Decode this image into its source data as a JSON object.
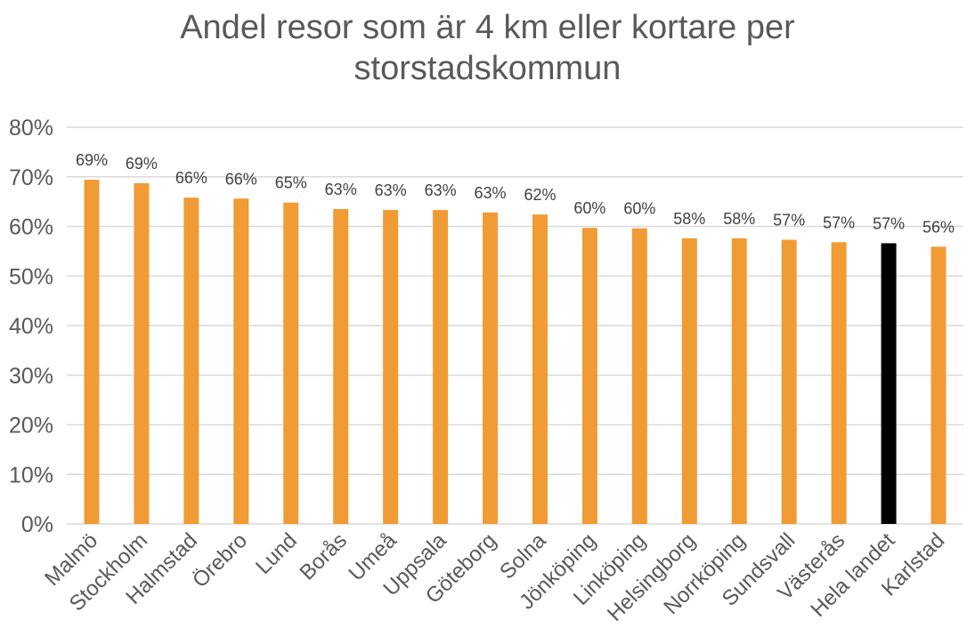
{
  "chart_data": {
    "type": "bar",
    "title": "Andel resor som är 4 km eller kortare per storstadskommun",
    "title_lines": [
      "Andel resor som är 4 km eller kortare per",
      "storstadskommun"
    ],
    "xlabel": "",
    "ylabel": "",
    "ylim": [
      0,
      0.8
    ],
    "yticks": [
      0,
      0.1,
      0.2,
      0.3,
      0.4,
      0.5,
      0.6,
      0.7,
      0.8
    ],
    "ytick_labels": [
      "0%",
      "10%",
      "20%",
      "30%",
      "40%",
      "50%",
      "60%",
      "70%",
      "80%"
    ],
    "grid": true,
    "legend": "none",
    "categories": [
      "Malmö",
      "Stockholm",
      "Halmstad",
      "Örebro",
      "Lund",
      "Borås",
      "Umeå",
      "Uppsala",
      "Göteborg",
      "Solna",
      "Jönköping",
      "Linköping",
      "Helsingborg",
      "Norrköping",
      "Sundsvall",
      "Västerås",
      "Hela landet",
      "Karlstad"
    ],
    "values": [
      0.694,
      0.687,
      0.658,
      0.656,
      0.648,
      0.635,
      0.633,
      0.633,
      0.628,
      0.624,
      0.597,
      0.596,
      0.576,
      0.576,
      0.573,
      0.568,
      0.566,
      0.559
    ],
    "data_labels": [
      "69%",
      "69%",
      "66%",
      "66%",
      "65%",
      "63%",
      "63%",
      "63%",
      "63%",
      "62%",
      "60%",
      "60%",
      "58%",
      "58%",
      "57%",
      "57%",
      "57%",
      "56%"
    ],
    "colors": {
      "default": "#F09B34",
      "highlight": "#000000",
      "title": "#595959",
      "text": "#595959",
      "grid": "#D9D9D9"
    },
    "highlight_category": "Hela landet"
  }
}
